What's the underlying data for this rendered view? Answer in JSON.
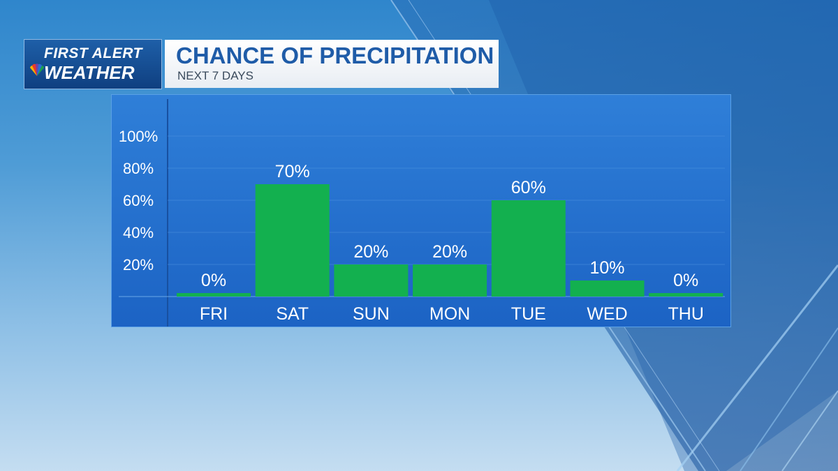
{
  "brand": {
    "line1": "FIRST ALERT",
    "line2": "WEATHER",
    "logo_icon": "peacock-icon"
  },
  "header": {
    "title": "CHANCE OF PRECIPITATION",
    "subtitle": "NEXT 7 DAYS"
  },
  "colors": {
    "bar": "#13b04f",
    "panel": "#2270cc",
    "title_text": "#1f5ca8"
  },
  "chart_data": {
    "type": "bar",
    "title": "CHANCE OF PRECIPITATION",
    "subtitle": "NEXT 7 DAYS",
    "categories": [
      "FRI",
      "SAT",
      "SUN",
      "MON",
      "TUE",
      "WED",
      "THU"
    ],
    "values": [
      0,
      70,
      20,
      20,
      60,
      10,
      0
    ],
    "data_labels": [
      "0%",
      "70%",
      "20%",
      "20%",
      "60%",
      "10%",
      "0%"
    ],
    "ylim": [
      0,
      100
    ],
    "yticks": [
      20,
      40,
      60,
      80,
      100
    ],
    "ytick_labels": [
      "20%",
      "40%",
      "60%",
      "80%",
      "100%"
    ],
    "grid": true,
    "legend": false
  }
}
